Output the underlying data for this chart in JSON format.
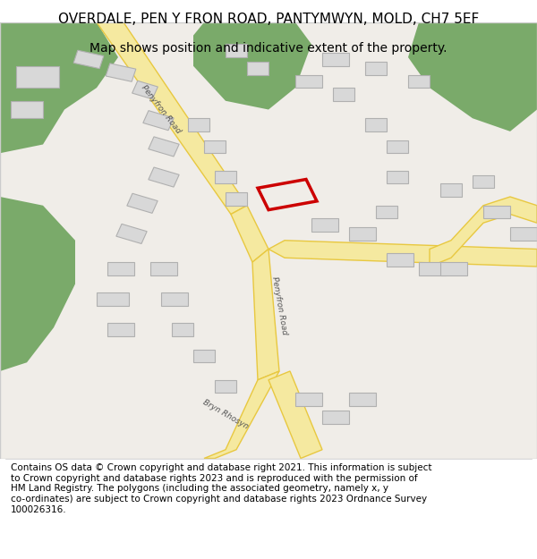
{
  "title": "OVERDALE, PEN Y FRON ROAD, PANTYMWYN, MOLD, CH7 5EF",
  "subtitle": "Map shows position and indicative extent of the property.",
  "footer": "Contains OS data © Crown copyright and database right 2021. This information is subject to Crown copyright and database rights 2023 and is reproduced with the permission of HM Land Registry. The polygons (including the associated geometry, namely x, y co-ordinates) are subject to Crown copyright and database rights 2023 Ordnance Survey 100026316.",
  "bg_color": "#f5f5f0",
  "map_bg": "#f0ede8",
  "road_fill": "#f5e9a0",
  "road_stroke": "#e8c840",
  "building_fill": "#d8d8d8",
  "building_stroke": "#b0b0b0",
  "green_fill": "#7aaa6a",
  "highlight_stroke": "#cc0000",
  "highlight_fill": "#ffcccc",
  "road_label_color": "#555555",
  "title_fontsize": 11,
  "subtitle_fontsize": 10,
  "footer_fontsize": 7.5
}
